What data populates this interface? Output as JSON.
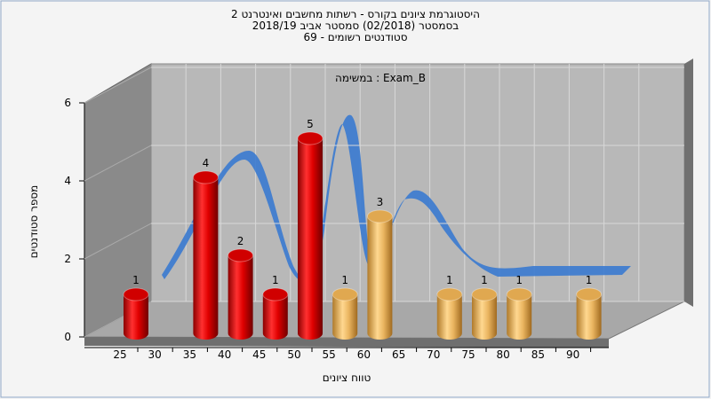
{
  "chart_data": {
    "type": "bar3d",
    "title": [
      "היסטוגרמת ציונים בקורס - רשתות מחשבים ואינטרנט 2",
      "בסמסטר (02/2018)  סמסטר אביב 2018/19",
      "סטודנטים רשומים - 69"
    ],
    "subtitle": "במשימה : Exam_B",
    "y_label": "מספר סטודנטים",
    "x_label": "טווח ציונים",
    "categories": [
      "25",
      "30",
      "35",
      "40",
      "45",
      "50",
      "55",
      "60",
      "65",
      "70",
      "75",
      "80",
      "85",
      "90"
    ],
    "values": [
      1,
      0,
      4,
      2,
      1,
      5,
      1,
      3,
      0,
      1,
      1,
      1,
      0,
      1
    ],
    "bar_colors": [
      "red",
      "red",
      "red",
      "red",
      "red",
      "red",
      "orange",
      "orange",
      "orange",
      "orange",
      "orange",
      "orange",
      "orange",
      "orange"
    ],
    "ylim": [
      0,
      6
    ],
    "yticks": [
      0,
      2,
      4,
      6
    ],
    "grid": true
  }
}
